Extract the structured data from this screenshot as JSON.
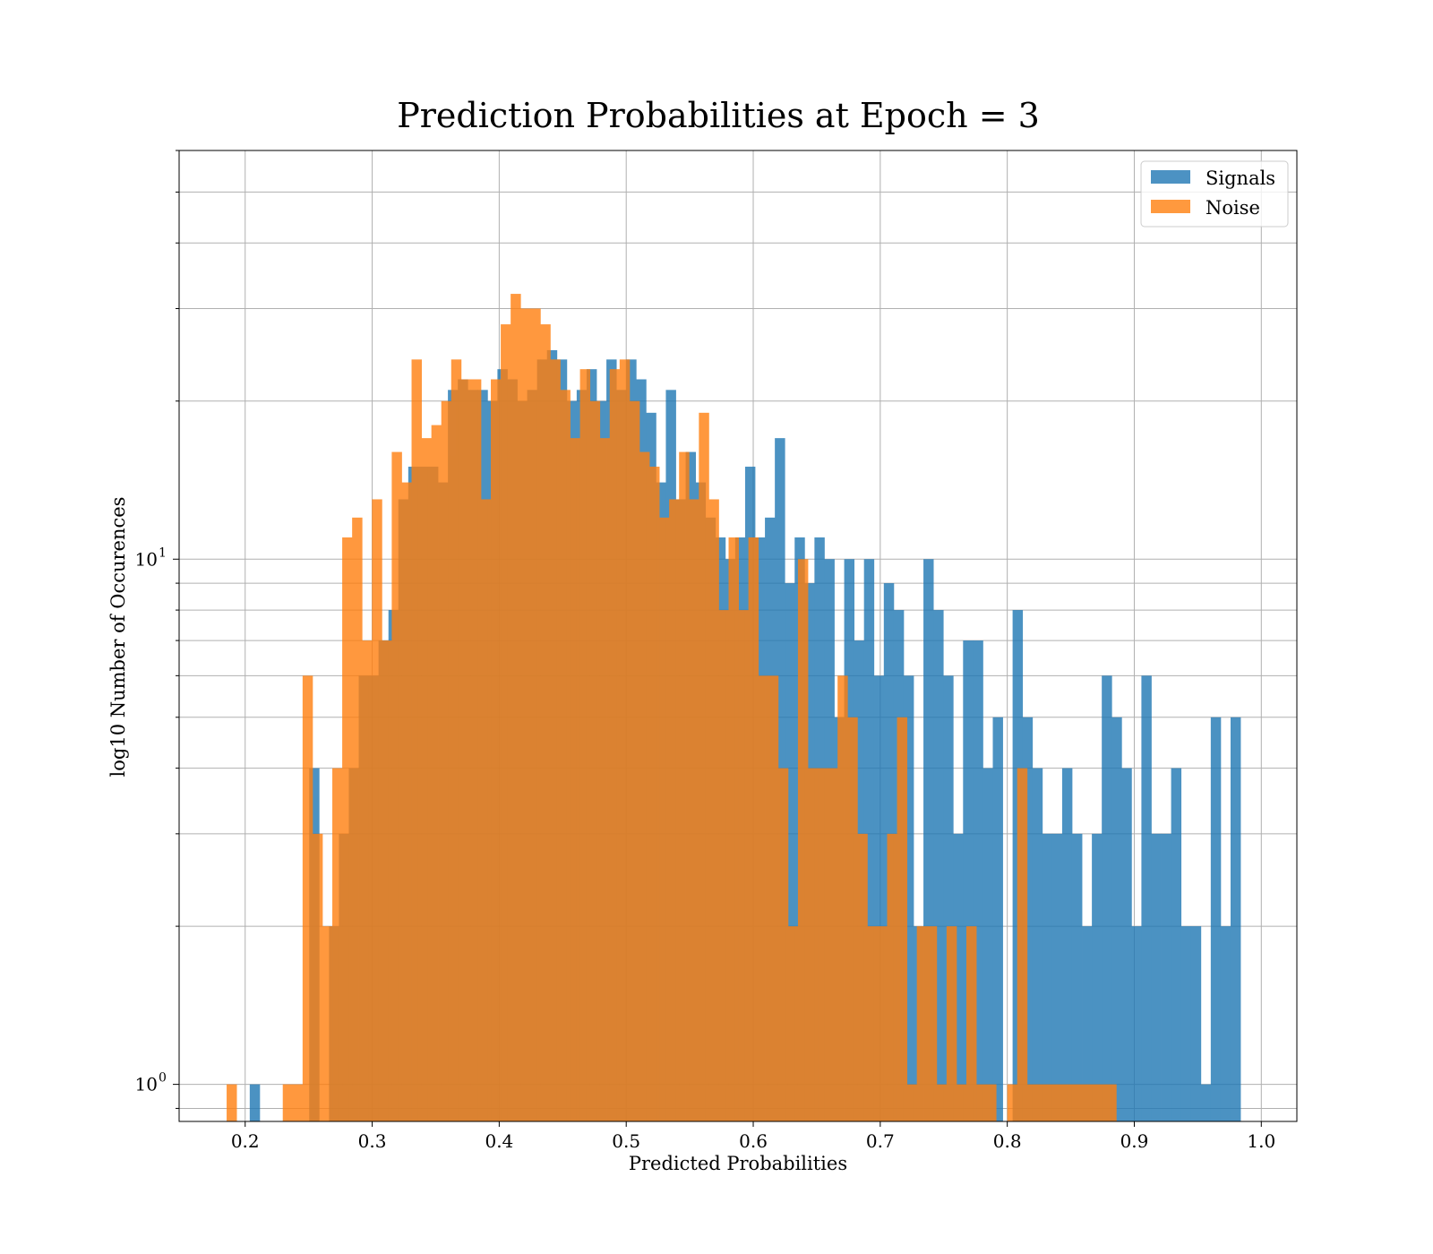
{
  "chart_data": {
    "type": "bar",
    "title": "Prediction Probabilities at Epoch = 3",
    "xlabel": "Predicted Probabilities",
    "ylabel": "log10 Number of Occurences",
    "xlim": [
      0.148,
      1.028
    ],
    "ylim": [
      0.85,
      60
    ],
    "y_scale": "log",
    "grid": true,
    "legend_position": "top-right",
    "x_ticks": [
      "0.2",
      "0.3",
      "0.4",
      "0.5",
      "0.6",
      "0.7",
      "0.8",
      "0.9",
      "1.0"
    ],
    "y_ticks": [
      {
        "base": "10",
        "exp": "1"
      },
      {
        "base": "10",
        "exp": "0"
      }
    ],
    "colors": {
      "signals": "#1f77b4",
      "noise": "#ff7f0e",
      "overlap": "#dc8032"
    },
    "series": [
      {
        "name": "Signals",
        "color": "#1f77b4",
        "bins": [
          [
            0.2036,
            0.2114,
            1
          ],
          [
            0.2504,
            0.2582,
            4
          ],
          [
            0.266,
            0.2738,
            2
          ],
          [
            0.2738,
            0.2816,
            3
          ],
          [
            0.2816,
            0.2894,
            4
          ],
          [
            0.2894,
            0.2972,
            6
          ],
          [
            0.2972,
            0.305,
            6
          ],
          [
            0.305,
            0.3128,
            7
          ],
          [
            0.3128,
            0.3206,
            8
          ],
          [
            0.3206,
            0.3284,
            13
          ],
          [
            0.3284,
            0.3362,
            15
          ],
          [
            0.3362,
            0.344,
            15
          ],
          [
            0.344,
            0.3518,
            15
          ],
          [
            0.3518,
            0.3596,
            14
          ],
          [
            0.3596,
            0.3674,
            21
          ],
          [
            0.3674,
            0.3752,
            22
          ],
          [
            0.3752,
            0.383,
            21
          ],
          [
            0.383,
            0.3908,
            21
          ],
          [
            0.3908,
            0.3986,
            20
          ],
          [
            0.3986,
            0.4064,
            23
          ],
          [
            0.4064,
            0.4142,
            22
          ],
          [
            0.4142,
            0.422,
            20
          ],
          [
            0.422,
            0.4298,
            21
          ],
          [
            0.4298,
            0.4376,
            24
          ],
          [
            0.4376,
            0.4454,
            25
          ],
          [
            0.4454,
            0.4532,
            24
          ],
          [
            0.4532,
            0.461,
            20
          ],
          [
            0.461,
            0.4688,
            21
          ],
          [
            0.4688,
            0.4766,
            23
          ],
          [
            0.4766,
            0.4844,
            20
          ],
          [
            0.4844,
            0.4922,
            24
          ],
          [
            0.4922,
            0.5,
            21
          ],
          [
            0.5,
            0.5078,
            24
          ],
          [
            0.5078,
            0.5156,
            22
          ],
          [
            0.5156,
            0.5234,
            19
          ],
          [
            0.5234,
            0.5312,
            14
          ],
          [
            0.5312,
            0.539,
            21
          ],
          [
            0.539,
            0.5468,
            13
          ],
          [
            0.5468,
            0.5546,
            16
          ],
          [
            0.5546,
            0.5624,
            14
          ],
          [
            0.5624,
            0.5702,
            12
          ],
          [
            0.5702,
            0.578,
            11
          ],
          [
            0.578,
            0.5858,
            10
          ],
          [
            0.5858,
            0.5936,
            11
          ],
          [
            0.5936,
            0.6014,
            15
          ],
          [
            0.6014,
            0.6092,
            11
          ],
          [
            0.6092,
            0.617,
            12
          ],
          [
            0.617,
            0.6248,
            17
          ],
          [
            0.6248,
            0.6326,
            9
          ],
          [
            0.6326,
            0.6404,
            11
          ],
          [
            0.6404,
            0.6482,
            9
          ],
          [
            0.6482,
            0.656,
            11
          ],
          [
            0.656,
            0.6638,
            10
          ],
          [
            0.6638,
            0.6716,
            5
          ],
          [
            0.6716,
            0.6794,
            10
          ],
          [
            0.6794,
            0.6872,
            7
          ],
          [
            0.6872,
            0.695,
            10
          ],
          [
            0.695,
            0.7028,
            6
          ],
          [
            0.7028,
            0.7106,
            9
          ],
          [
            0.7106,
            0.7184,
            8
          ],
          [
            0.7184,
            0.7262,
            6
          ],
          [
            0.7262,
            0.734,
            2
          ],
          [
            0.734,
            0.7418,
            10
          ],
          [
            0.7418,
            0.7496,
            8
          ],
          [
            0.7496,
            0.7574,
            6
          ],
          [
            0.7574,
            0.7652,
            3
          ],
          [
            0.7652,
            0.773,
            7
          ],
          [
            0.773,
            0.7808,
            7
          ],
          [
            0.7808,
            0.7886,
            4
          ],
          [
            0.7886,
            0.7964,
            5
          ],
          [
            0.8042,
            0.812,
            8
          ],
          [
            0.812,
            0.8198,
            5
          ],
          [
            0.8198,
            0.8276,
            4
          ],
          [
            0.8276,
            0.8354,
            3
          ],
          [
            0.8354,
            0.8432,
            3
          ],
          [
            0.8432,
            0.851,
            4
          ],
          [
            0.851,
            0.8588,
            3
          ],
          [
            0.8588,
            0.8666,
            2
          ],
          [
            0.8666,
            0.8744,
            3
          ],
          [
            0.8744,
            0.8822,
            6
          ],
          [
            0.8822,
            0.89,
            5
          ],
          [
            0.89,
            0.8978,
            4
          ],
          [
            0.8978,
            0.9056,
            2
          ],
          [
            0.9056,
            0.9134,
            6
          ],
          [
            0.9134,
            0.9212,
            3
          ],
          [
            0.9212,
            0.929,
            3
          ],
          [
            0.929,
            0.9368,
            4
          ],
          [
            0.9368,
            0.9446,
            2
          ],
          [
            0.9446,
            0.9524,
            2
          ],
          [
            0.9524,
            0.9602,
            1
          ],
          [
            0.9602,
            0.968,
            5
          ],
          [
            0.968,
            0.9758,
            2
          ],
          [
            0.9758,
            0.9836,
            5
          ]
        ]
      },
      {
        "name": "Noise",
        "color": "#ff7f0e",
        "bins": [
          [
            0.1854,
            0.1932,
            1
          ],
          [
            0.2296,
            0.2374,
            1
          ],
          [
            0.2374,
            0.2452,
            1
          ],
          [
            0.2452,
            0.253,
            6
          ],
          [
            0.253,
            0.2608,
            3
          ],
          [
            0.2608,
            0.2686,
            2
          ],
          [
            0.2686,
            0.2764,
            4
          ],
          [
            0.2764,
            0.2842,
            11
          ],
          [
            0.2842,
            0.292,
            12
          ],
          [
            0.292,
            0.2998,
            7
          ],
          [
            0.2998,
            0.3076,
            13
          ],
          [
            0.3076,
            0.3154,
            7
          ],
          [
            0.3154,
            0.3232,
            16
          ],
          [
            0.3232,
            0.331,
            14
          ],
          [
            0.331,
            0.3388,
            24
          ],
          [
            0.3388,
            0.3466,
            17
          ],
          [
            0.3466,
            0.3544,
            18
          ],
          [
            0.3544,
            0.3622,
            20
          ],
          [
            0.3622,
            0.37,
            24
          ],
          [
            0.37,
            0.3778,
            22
          ],
          [
            0.3778,
            0.3856,
            22
          ],
          [
            0.3856,
            0.3934,
            13
          ],
          [
            0.3934,
            0.4012,
            22
          ],
          [
            0.4012,
            0.409,
            28
          ],
          [
            0.409,
            0.4168,
            32
          ],
          [
            0.4168,
            0.4246,
            30
          ],
          [
            0.4246,
            0.4324,
            30
          ],
          [
            0.4324,
            0.4402,
            28
          ],
          [
            0.4402,
            0.448,
            24
          ],
          [
            0.448,
            0.4558,
            21
          ],
          [
            0.4558,
            0.4636,
            17
          ],
          [
            0.4636,
            0.4714,
            23
          ],
          [
            0.4714,
            0.4792,
            20
          ],
          [
            0.4792,
            0.487,
            17
          ],
          [
            0.487,
            0.4948,
            23
          ],
          [
            0.4948,
            0.5026,
            24
          ],
          [
            0.5026,
            0.5104,
            20
          ],
          [
            0.5104,
            0.5182,
            16
          ],
          [
            0.5182,
            0.526,
            15
          ],
          [
            0.526,
            0.5338,
            12
          ],
          [
            0.5338,
            0.5416,
            13
          ],
          [
            0.5416,
            0.5494,
            16
          ],
          [
            0.5494,
            0.5572,
            13
          ],
          [
            0.5572,
            0.565,
            19
          ],
          [
            0.565,
            0.5728,
            13
          ],
          [
            0.5728,
            0.5806,
            8
          ],
          [
            0.5806,
            0.5884,
            11
          ],
          [
            0.5884,
            0.5962,
            8
          ],
          [
            0.5962,
            0.604,
            11
          ],
          [
            0.604,
            0.6118,
            6
          ],
          [
            0.6118,
            0.6196,
            6
          ],
          [
            0.6196,
            0.6274,
            4
          ],
          [
            0.6274,
            0.6352,
            2
          ],
          [
            0.6352,
            0.643,
            10
          ],
          [
            0.643,
            0.6508,
            4
          ],
          [
            0.6508,
            0.6586,
            4
          ],
          [
            0.6586,
            0.6664,
            4
          ],
          [
            0.6664,
            0.6742,
            6
          ],
          [
            0.6742,
            0.682,
            5
          ],
          [
            0.682,
            0.6898,
            3
          ],
          [
            0.6898,
            0.6976,
            2
          ],
          [
            0.6976,
            0.7054,
            2
          ],
          [
            0.7054,
            0.7132,
            3
          ],
          [
            0.7132,
            0.721,
            5
          ],
          [
            0.721,
            0.7288,
            1
          ],
          [
            0.7288,
            0.7366,
            2
          ],
          [
            0.7366,
            0.7444,
            2
          ],
          [
            0.7444,
            0.7522,
            1
          ],
          [
            0.7522,
            0.76,
            2
          ],
          [
            0.76,
            0.7678,
            1
          ],
          [
            0.7678,
            0.7756,
            2
          ],
          [
            0.7756,
            0.7834,
            1
          ],
          [
            0.7834,
            0.7912,
            1
          ],
          [
            0.8,
            0.8078,
            1
          ],
          [
            0.8078,
            0.8156,
            4
          ],
          [
            0.8156,
            0.8234,
            1
          ],
          [
            0.8234,
            0.8312,
            1
          ],
          [
            0.8312,
            0.839,
            1
          ],
          [
            0.839,
            0.8468,
            1
          ],
          [
            0.8468,
            0.8546,
            1
          ],
          [
            0.8546,
            0.8624,
            1
          ],
          [
            0.8624,
            0.8702,
            1
          ],
          [
            0.8702,
            0.878,
            1
          ],
          [
            0.878,
            0.8858,
            1
          ]
        ]
      }
    ],
    "legend": [
      {
        "label": "Signals",
        "color": "#1f77b4"
      },
      {
        "label": "Noise",
        "color": "#ff7f0e"
      }
    ]
  }
}
